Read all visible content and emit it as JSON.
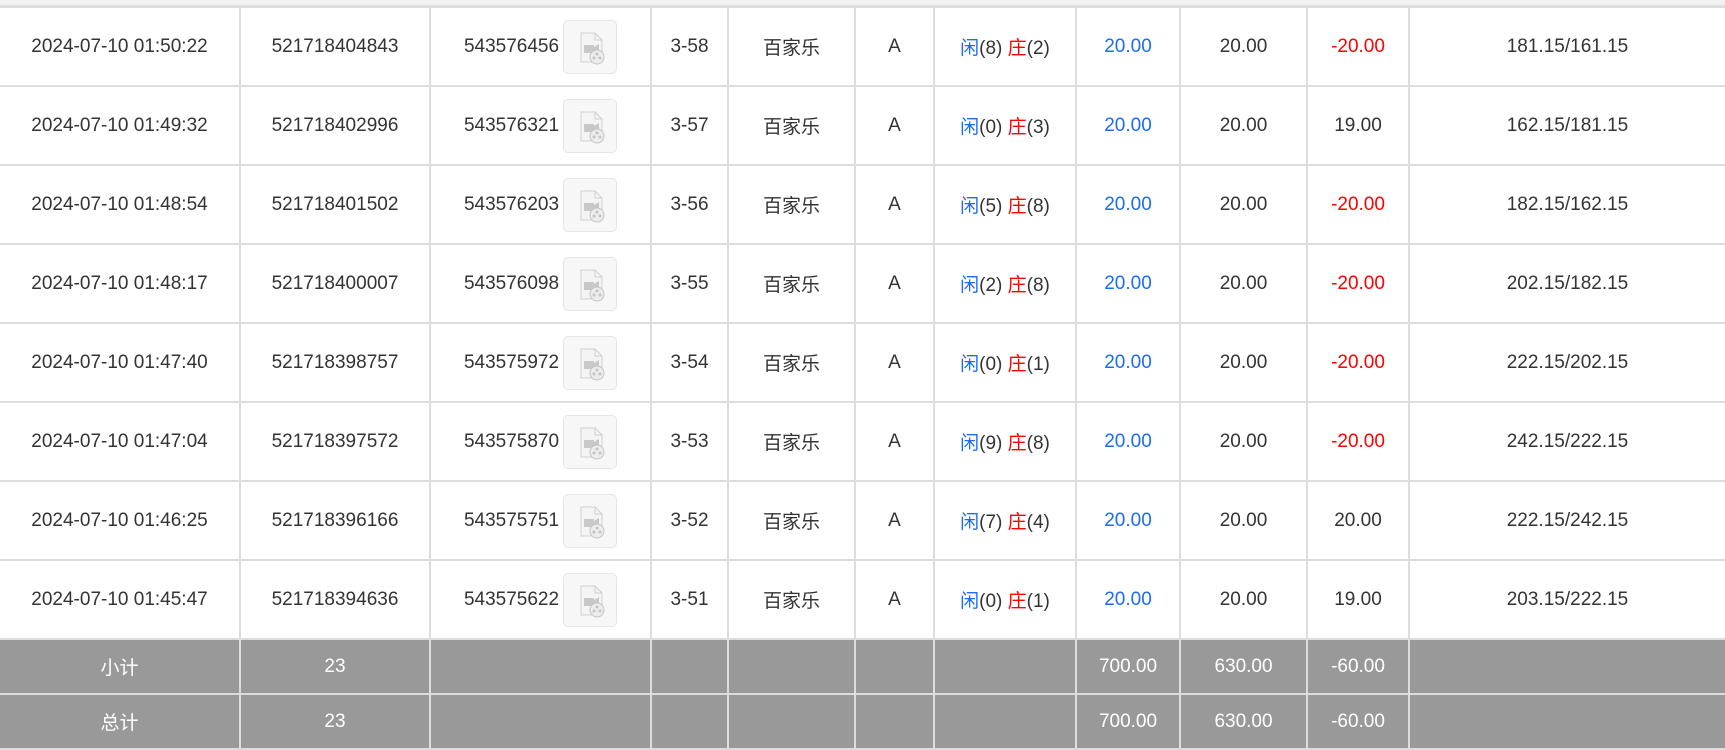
{
  "rows": [
    {
      "time": "2024-07-10 01:50:22",
      "order": "521718404843",
      "round": "543576456",
      "table": "3-58",
      "game": "百家乐",
      "hall": "A",
      "player_label": "闲",
      "player": "(8)",
      "banker_label": "庄",
      "banker": "(2)",
      "bet": "20.00",
      "valid": "20.00",
      "win": "-20.00",
      "balance": "181.15/161.15"
    },
    {
      "time": "2024-07-10 01:49:32",
      "order": "521718402996",
      "round": "543576321",
      "table": "3-57",
      "game": "百家乐",
      "hall": "A",
      "player_label": "闲",
      "player": "(0)",
      "banker_label": "庄",
      "banker": "(3)",
      "bet": "20.00",
      "valid": "20.00",
      "win": "19.00",
      "balance": "162.15/181.15"
    },
    {
      "time": "2024-07-10 01:48:54",
      "order": "521718401502",
      "round": "543576203",
      "table": "3-56",
      "game": "百家乐",
      "hall": "A",
      "player_label": "闲",
      "player": "(5)",
      "banker_label": "庄",
      "banker": "(8)",
      "bet": "20.00",
      "valid": "20.00",
      "win": "-20.00",
      "balance": "182.15/162.15"
    },
    {
      "time": "2024-07-10 01:48:17",
      "order": "521718400007",
      "round": "543576098",
      "table": "3-55",
      "game": "百家乐",
      "hall": "A",
      "player_label": "闲",
      "player": "(2)",
      "banker_label": "庄",
      "banker": "(8)",
      "bet": "20.00",
      "valid": "20.00",
      "win": "-20.00",
      "balance": "202.15/182.15"
    },
    {
      "time": "2024-07-10 01:47:40",
      "order": "521718398757",
      "round": "543575972",
      "table": "3-54",
      "game": "百家乐",
      "hall": "A",
      "player_label": "闲",
      "player": "(0)",
      "banker_label": "庄",
      "banker": "(1)",
      "bet": "20.00",
      "valid": "20.00",
      "win": "-20.00",
      "balance": "222.15/202.15"
    },
    {
      "time": "2024-07-10 01:47:04",
      "order": "521718397572",
      "round": "543575870",
      "table": "3-53",
      "game": "百家乐",
      "hall": "A",
      "player_label": "闲",
      "player": "(9)",
      "banker_label": "庄",
      "banker": "(8)",
      "bet": "20.00",
      "valid": "20.00",
      "win": "-20.00",
      "balance": "242.15/222.15"
    },
    {
      "time": "2024-07-10 01:46:25",
      "order": "521718396166",
      "round": "543575751",
      "table": "3-52",
      "game": "百家乐",
      "hall": "A",
      "player_label": "闲",
      "player": "(7)",
      "banker_label": "庄",
      "banker": "(4)",
      "bet": "20.00",
      "valid": "20.00",
      "win": "20.00",
      "balance": "222.15/242.15"
    },
    {
      "time": "2024-07-10 01:45:47",
      "order": "521718394636",
      "round": "543575622",
      "table": "3-51",
      "game": "百家乐",
      "hall": "A",
      "player_label": "闲",
      "player": "(0)",
      "banker_label": "庄",
      "banker": "(1)",
      "bet": "20.00",
      "valid": "20.00",
      "win": "19.00",
      "balance": "203.15/222.15"
    }
  ],
  "summary": [
    {
      "label": "小计",
      "count": "23",
      "bet": "700.00",
      "valid": "630.00",
      "win": "-60.00"
    },
    {
      "label": "总计",
      "count": "23",
      "bet": "700.00",
      "valid": "630.00",
      "win": "-60.00"
    }
  ],
  "colors": {
    "player": "#1a6cf0",
    "banker": "#ff0000",
    "negative": "#ff0000",
    "summary_bg": "#999999"
  },
  "icons": {
    "replay": "video-file-icon"
  }
}
